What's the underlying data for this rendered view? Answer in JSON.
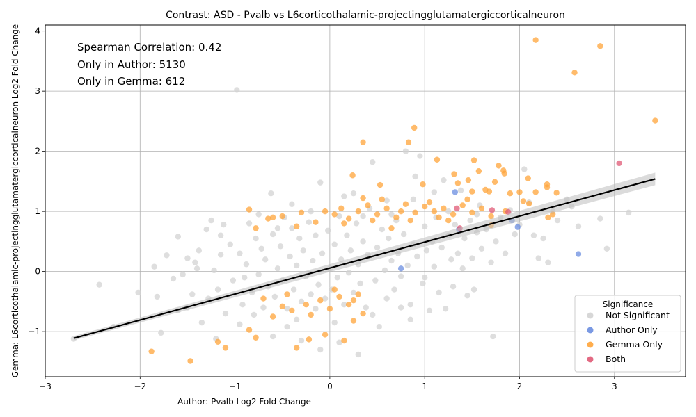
{
  "chart_data": {
    "type": "scatter",
    "title": "Contrast: ASD - Pvalb vs L6corticothalamic-projectingglutamatergiccorticalneuron",
    "xlabel": "Author: Pvalb Log2 Fold Change",
    "ylabel": "Gemma: L6corticothalamic-projectingglutamatergiccorticalneuron Log2 Fold Change",
    "xlim": [
      -3.0,
      3.75
    ],
    "ylim": [
      -1.75,
      4.1
    ],
    "xticks": [
      -3,
      -2,
      -1,
      0,
      1,
      2,
      3
    ],
    "xtick_labels": [
      "−3",
      "−2",
      "−1",
      "0",
      "1",
      "2",
      "3"
    ],
    "yticks": [
      -1,
      0,
      1,
      2,
      3,
      4
    ],
    "ytick_labels": [
      "−1",
      "0",
      "1",
      "2",
      "3",
      "4"
    ],
    "grid": true,
    "annotations": [
      "Spearman Correlation: 0.42",
      "Only in Author: 5130",
      "Only in Gemma: 612"
    ],
    "legend": {
      "title": "Significance",
      "placement": "lower-right",
      "entries": [
        {
          "label": "Not Significant",
          "color": "#d3d3d3"
        },
        {
          "label": "Author Only",
          "color": "#6b8ee0"
        },
        {
          "label": "Gemma Only",
          "color": "#ffa43a"
        },
        {
          "label": "Both",
          "color": "#e05a75"
        }
      ]
    },
    "regression_line": {
      "x": [
        -2.7,
        3.43
      ],
      "y": [
        -1.11,
        1.54
      ],
      "color": "#000000"
    },
    "series": [
      {
        "name": "Not Significant",
        "color": "#d3d3d3",
        "points": [
          [
            -2.43,
            -0.22
          ],
          [
            -2.02,
            -0.35
          ],
          [
            -1.85,
            0.08
          ],
          [
            -1.82,
            -0.42
          ],
          [
            -1.78,
            -1.02
          ],
          [
            -1.72,
            0.27
          ],
          [
            -1.65,
            -0.12
          ],
          [
            -1.6,
            0.58
          ],
          [
            -1.55,
            -0.05
          ],
          [
            -1.5,
            0.22
          ],
          [
            -1.45,
            -0.38
          ],
          [
            -1.42,
            0.15
          ],
          [
            -1.38,
            0.35
          ],
          [
            -1.35,
            -0.85
          ],
          [
            -1.3,
            0.7
          ],
          [
            -1.28,
            -0.45
          ],
          [
            -1.25,
            0.85
          ],
          [
            -1.22,
            0.02
          ],
          [
            -1.18,
            -0.3
          ],
          [
            -1.15,
            0.6
          ],
          [
            -1.12,
            0.78
          ],
          [
            -1.1,
            -0.7
          ],
          [
            -1.05,
            0.45
          ],
          [
            -1.02,
            -0.15
          ],
          [
            -0.98,
            3.02
          ],
          [
            -0.95,
            0.3
          ],
          [
            -0.92,
            -0.55
          ],
          [
            -0.88,
            0.12
          ],
          [
            -0.85,
            0.8
          ],
          [
            -0.82,
            -0.35
          ],
          [
            -0.78,
            0.55
          ],
          [
            -0.75,
            -0.05
          ],
          [
            -0.72,
            0.38
          ],
          [
            -0.7,
            -0.6
          ],
          [
            -0.68,
            0.2
          ],
          [
            -0.65,
            -0.25
          ],
          [
            -0.62,
            1.3
          ],
          [
            -0.6,
            0.62
          ],
          [
            -0.58,
            -0.42
          ],
          [
            -0.55,
            0.05
          ],
          [
            -0.52,
            0.42
          ],
          [
            -0.5,
            -0.15
          ],
          [
            -0.48,
            0.9
          ],
          [
            -0.45,
            -0.62
          ],
          [
            -0.42,
            0.25
          ],
          [
            -0.4,
            0.72
          ],
          [
            -0.38,
            -0.3
          ],
          [
            -0.35,
            0.1
          ],
          [
            -0.32,
            0.55
          ],
          [
            -0.3,
            -0.5
          ],
          [
            -0.28,
            0.35
          ],
          [
            -0.25,
            -0.08
          ],
          [
            -0.22,
            0.82
          ],
          [
            -0.2,
            -0.38
          ],
          [
            -0.18,
            0.18
          ],
          [
            -0.15,
            0.6
          ],
          [
            -0.12,
            -0.22
          ],
          [
            -0.1,
            1.48
          ],
          [
            -0.08,
            0.3
          ],
          [
            -0.05,
            -0.45
          ],
          [
            -0.02,
            0.68
          ],
          [
            0.0,
            0.05
          ],
          [
            0.02,
            -0.3
          ],
          [
            0.05,
            0.45
          ],
          [
            0.08,
            -0.1
          ],
          [
            0.1,
            0.92
          ],
          [
            0.12,
            0.2
          ],
          [
            0.15,
            -0.55
          ],
          [
            0.18,
            0.6
          ],
          [
            0.2,
            -0.02
          ],
          [
            0.22,
            0.35
          ],
          [
            0.25,
            -0.35
          ],
          [
            0.28,
            0.8
          ],
          [
            0.3,
            0.12
          ],
          [
            0.32,
            -0.2
          ],
          [
            0.35,
            0.5
          ],
          [
            0.38,
            -0.6
          ],
          [
            0.4,
            0.28
          ],
          [
            0.42,
            1.05
          ],
          [
            0.45,
            1.82
          ],
          [
            0.48,
            -0.15
          ],
          [
            0.5,
            0.4
          ],
          [
            0.52,
            -0.92
          ],
          [
            0.55,
            0.7
          ],
          [
            0.58,
            0.02
          ],
          [
            0.6,
            -0.45
          ],
          [
            0.62,
            0.55
          ],
          [
            0.65,
            0.18
          ],
          [
            0.68,
            -0.3
          ],
          [
            0.7,
            0.85
          ],
          [
            0.72,
            0.3
          ],
          [
            0.75,
            -0.08
          ],
          [
            0.78,
            0.62
          ],
          [
            0.8,
            2.0
          ],
          [
            0.82,
            0.1
          ],
          [
            0.85,
            -0.55
          ],
          [
            0.88,
            0.45
          ],
          [
            0.9,
            1.58
          ],
          [
            0.92,
            0.25
          ],
          [
            0.95,
            1.92
          ],
          [
            0.98,
            -0.2
          ],
          [
            1.0,
            0.75
          ],
          [
            1.02,
            0.35
          ],
          [
            1.05,
            -0.65
          ],
          [
            1.08,
            0.5
          ],
          [
            1.1,
            0.08
          ],
          [
            1.12,
            0.9
          ],
          [
            1.15,
            -0.35
          ],
          [
            1.18,
            0.4
          ],
          [
            1.2,
            1.52
          ],
          [
            1.22,
            -0.62
          ],
          [
            1.25,
            0.6
          ],
          [
            1.28,
            0.2
          ],
          [
            1.3,
            -0.25
          ],
          [
            1.32,
            0.78
          ],
          [
            1.35,
            0.3
          ],
          [
            1.38,
            1.35
          ],
          [
            1.4,
            0.05
          ],
          [
            1.42,
            0.55
          ],
          [
            1.45,
            -0.4
          ],
          [
            1.48,
            0.85
          ],
          [
            1.5,
            0.22
          ],
          [
            1.52,
            -0.3
          ],
          [
            1.55,
            0.65
          ],
          [
            1.58,
            1.1
          ],
          [
            1.6,
            0.38
          ],
          [
            1.65,
            0.7
          ],
          [
            1.7,
            0.15
          ],
          [
            1.72,
            -1.08
          ],
          [
            1.75,
            0.5
          ],
          [
            1.8,
            0.9
          ],
          [
            1.85,
            0.3
          ],
          [
            1.9,
            1.02
          ],
          [
            1.95,
            0.62
          ],
          [
            2.0,
            0.78
          ],
          [
            2.05,
            1.7
          ],
          [
            2.1,
            1.15
          ],
          [
            2.15,
            0.6
          ],
          [
            2.2,
            0.22
          ],
          [
            2.25,
            0.55
          ],
          [
            2.3,
            0.15
          ],
          [
            2.35,
            1.0
          ],
          [
            2.4,
            0.85
          ],
          [
            2.5,
            1.2
          ],
          [
            2.55,
            1.08
          ],
          [
            2.62,
            0.75
          ],
          [
            2.85,
            0.88
          ],
          [
            2.92,
            0.38
          ],
          [
            3.15,
            0.98
          ],
          [
            -1.2,
            -1.12
          ],
          [
            -0.95,
            -0.88
          ],
          [
            -0.6,
            -1.08
          ],
          [
            -0.3,
            -1.15
          ],
          [
            -0.1,
            -1.3
          ],
          [
            0.1,
            -1.18
          ],
          [
            0.3,
            -1.38
          ],
          [
            0.05,
            -0.85
          ],
          [
            -0.45,
            -0.92
          ],
          [
            -1.6,
            -0.65
          ],
          [
            -2.28,
            -0.92
          ],
          [
            -2.7,
            -1.12
          ],
          [
            -0.75,
            0.95
          ],
          [
            -0.4,
            1.12
          ],
          [
            -0.2,
            1.0
          ],
          [
            0.15,
            1.25
          ],
          [
            0.25,
            1.3
          ],
          [
            0.6,
            1.18
          ],
          [
            0.88,
            1.2
          ],
          [
            1.1,
            1.32
          ],
          [
            -1.5,
            -0.6
          ],
          [
            -1.4,
            0.05
          ],
          [
            -1.15,
            0.28
          ],
          [
            -0.9,
            -0.1
          ],
          [
            -0.55,
            0.72
          ],
          [
            -0.15,
            -0.62
          ],
          [
            0.35,
            0.92
          ],
          [
            0.65,
            0.95
          ],
          [
            0.85,
            -0.8
          ],
          [
            1.0,
            -0.1
          ],
          [
            1.25,
            1.0
          ],
          [
            1.55,
            0.95
          ],
          [
            -0.8,
            -0.72
          ],
          [
            -0.35,
            -0.8
          ],
          [
            0.45,
            -0.72
          ],
          [
            0.75,
            -0.6
          ]
        ]
      },
      {
        "name": "Author Only",
        "color": "#6b8ee0",
        "points": [
          [
            1.32,
            1.32
          ],
          [
            1.98,
            0.74
          ],
          [
            2.62,
            0.29
          ],
          [
            0.75,
            0.05
          ],
          [
            1.92,
            0.85
          ],
          [
            1.36,
            0.7
          ]
        ]
      },
      {
        "name": "Gemma Only",
        "color": "#ffa43a",
        "points": [
          [
            2.17,
            3.85
          ],
          [
            2.85,
            3.75
          ],
          [
            2.58,
            3.31
          ],
          [
            3.43,
            2.51
          ],
          [
            0.89,
            2.39
          ],
          [
            0.83,
            2.15
          ],
          [
            0.35,
            2.15
          ],
          [
            1.13,
            1.86
          ],
          [
            1.52,
            1.85
          ],
          [
            1.78,
            1.76
          ],
          [
            1.57,
            1.67
          ],
          [
            1.83,
            1.68
          ],
          [
            1.84,
            1.63
          ],
          [
            1.31,
            1.62
          ],
          [
            1.46,
            1.52
          ],
          [
            2.09,
            1.55
          ],
          [
            1.74,
            1.49
          ],
          [
            1.35,
            1.47
          ],
          [
            0.98,
            1.45
          ],
          [
            2.29,
            1.45
          ],
          [
            2.0,
            1.32
          ],
          [
            2.39,
            1.31
          ],
          [
            1.9,
            1.3
          ],
          [
            0.24,
            1.6
          ],
          [
            0.53,
            1.44
          ],
          [
            2.17,
            1.32
          ],
          [
            1.68,
            1.33
          ],
          [
            1.64,
            1.36
          ],
          [
            1.5,
            1.33
          ],
          [
            2.29,
            1.4
          ],
          [
            2.04,
            1.17
          ],
          [
            2.1,
            1.13
          ],
          [
            2.3,
            0.9
          ],
          [
            2.35,
            0.95
          ],
          [
            1.7,
            0.77
          ],
          [
            1.85,
            1.0
          ],
          [
            -0.85,
            1.03
          ],
          [
            -0.78,
            0.72
          ],
          [
            -0.65,
            0.88
          ],
          [
            -0.5,
            0.92
          ],
          [
            -0.3,
            0.98
          ],
          [
            -0.15,
            0.82
          ],
          [
            0.05,
            0.95
          ],
          [
            0.12,
            1.05
          ],
          [
            0.2,
            0.88
          ],
          [
            0.3,
            1.0
          ],
          [
            0.4,
            1.1
          ],
          [
            0.5,
            0.95
          ],
          [
            0.6,
            1.05
          ],
          [
            0.7,
            0.9
          ],
          [
            0.8,
            1.12
          ],
          [
            0.9,
            0.98
          ],
          [
            1.0,
            1.08
          ],
          [
            1.1,
            1.0
          ],
          [
            1.2,
            1.05
          ],
          [
            1.3,
            0.95
          ],
          [
            1.4,
            1.1
          ],
          [
            1.5,
            0.98
          ],
          [
            1.6,
            1.05
          ],
          [
            1.7,
            0.92
          ],
          [
            -1.88,
            -1.33
          ],
          [
            -1.47,
            -1.49
          ],
          [
            -1.18,
            -1.17
          ],
          [
            -1.1,
            -1.27
          ],
          [
            -0.78,
            -1.1
          ],
          [
            -0.35,
            -1.27
          ],
          [
            -0.22,
            -1.13
          ],
          [
            -0.05,
            -1.05
          ],
          [
            0.15,
            -1.15
          ],
          [
            0.25,
            -0.82
          ],
          [
            -0.85,
            -0.97
          ],
          [
            -0.6,
            -0.75
          ],
          [
            -0.5,
            -0.58
          ],
          [
            -0.4,
            -0.65
          ],
          [
            -0.25,
            -0.55
          ],
          [
            -0.1,
            -0.48
          ],
          [
            0.0,
            -0.62
          ],
          [
            0.1,
            -0.42
          ],
          [
            0.2,
            -0.55
          ],
          [
            0.3,
            -0.38
          ],
          [
            0.35,
            -0.7
          ],
          [
            -0.7,
            -0.45
          ],
          [
            -0.45,
            -0.38
          ],
          [
            -0.2,
            -0.72
          ],
          [
            0.05,
            -0.3
          ],
          [
            0.25,
            -0.48
          ],
          [
            -0.6,
            0.9
          ],
          [
            -0.35,
            0.75
          ],
          [
            0.15,
            0.8
          ],
          [
            0.45,
            0.85
          ],
          [
            0.75,
            1.0
          ],
          [
            1.05,
            1.15
          ],
          [
            1.25,
            0.85
          ],
          [
            0.55,
            1.2
          ],
          [
            0.85,
            0.85
          ],
          [
            0.65,
            0.72
          ],
          [
            0.35,
            1.22
          ],
          [
            -0.05,
            1.0
          ],
          [
            1.45,
            1.2
          ],
          [
            1.15,
            0.9
          ]
        ]
      },
      {
        "name": "Both",
        "color": "#e05a75",
        "points": [
          [
            3.05,
            1.8
          ],
          [
            1.88,
            0.99
          ],
          [
            1.71,
            1.02
          ],
          [
            1.34,
            1.05
          ],
          [
            1.37,
            0.72
          ]
        ]
      }
    ]
  }
}
